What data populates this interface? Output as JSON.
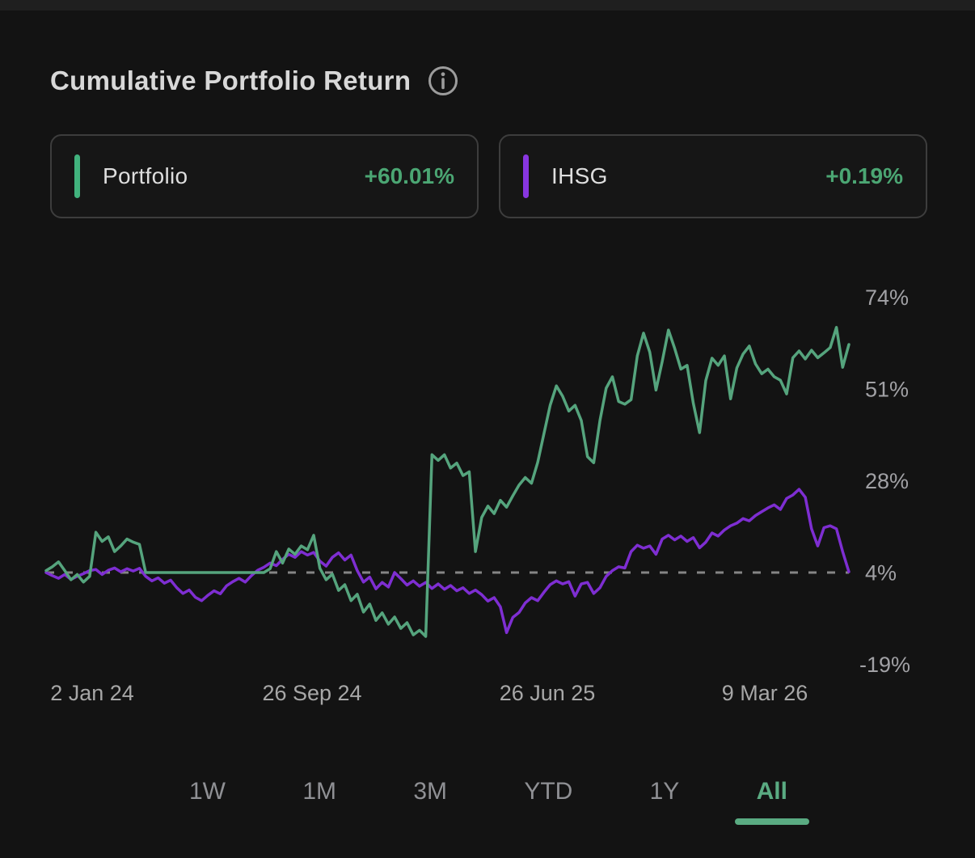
{
  "header": {
    "title": "Cumulative Portfolio Return",
    "info_icon": "info-icon"
  },
  "theme": {
    "background": "#131313",
    "positive_text": "#4ba673",
    "portfolio_green": "#55a47d",
    "ihsg_purple": "#7e2ed2",
    "baseline_gray": "#858585",
    "axis_text": "#a1a1a5"
  },
  "legend": [
    {
      "label": "Portfolio",
      "value": "+60.01%",
      "accent": "#41b27d"
    },
    {
      "label": "IHSG",
      "value": "+0.19%",
      "accent": "#8836e0"
    }
  ],
  "chart_data": {
    "type": "line",
    "title": "Cumulative Portfolio Return",
    "y_unit": "%",
    "baseline_value": 0,
    "grid": false,
    "legend_position": "top",
    "x_tick_labels": [
      "2 Jan 24",
      "26 Sep 24",
      "26 Jun 25",
      "9 Mar 26"
    ],
    "y_tick_labels": [
      "74%",
      "51%",
      "28%",
      "4%",
      "-19%"
    ],
    "y_tick_values": [
      74,
      51,
      28,
      4,
      -19
    ],
    "series": [
      {
        "name": "Portfolio",
        "color": "#55a47d",
        "final_label": "+60.01%",
        "values": [
          0.5,
          1.5,
          2.8,
          0.5,
          -1.9,
          -0.5,
          -2.5,
          -1.0,
          10.6,
          8.2,
          9.4,
          5.5,
          7.0,
          8.8,
          8.0,
          7.4,
          0,
          0,
          0,
          0,
          0,
          0,
          0,
          0,
          0,
          0,
          0,
          0,
          0,
          0,
          0,
          0,
          0,
          0,
          0,
          0,
          1.0,
          5.5,
          2.5,
          6.2,
          4.8,
          7.0,
          6.0,
          9.8,
          1.1,
          -1.9,
          -0.4,
          -4.7,
          -3.2,
          -7.4,
          -5.7,
          -10.4,
          -8.3,
          -12.6,
          -10.6,
          -13.6,
          -11.7,
          -14.7,
          -13.2,
          -16.4,
          -15.2,
          -16.8,
          31.0,
          29.5,
          31.0,
          27.5,
          28.8,
          25.5,
          26.5,
          5.5,
          14.5,
          17.5,
          15.5,
          19.0,
          17.2,
          20.2,
          23.0,
          25.0,
          23.5,
          29.0,
          36.5,
          44.0,
          49.1,
          46.4,
          42.5,
          44.0,
          40.0,
          30.5,
          28.9,
          40.0,
          48.5,
          51.5,
          45.0,
          44.3,
          45.5,
          57.0,
          63.0,
          58.0,
          48.0,
          55.5,
          63.8,
          59.0,
          53.5,
          54.5,
          44.5,
          36.8,
          50.5,
          56.4,
          54.5,
          57.0,
          45.7,
          53.8,
          57.5,
          59.6,
          54.9,
          52.3,
          53.5,
          51.5,
          50.6,
          47.0,
          56.5,
          58.3,
          56.2,
          58.5,
          56.5,
          57.8,
          59.2,
          64.5,
          54.0,
          60.01
        ]
      },
      {
        "name": "IHSG",
        "color": "#7e2ed2",
        "final_label": "+0.19%",
        "values": [
          0.0,
          -0.8,
          -1.5,
          -0.5,
          -1.8,
          -1.0,
          -0.3,
          0.5,
          0.8,
          -0.5,
          0.6,
          1.2,
          0.2,
          1.0,
          0.4,
          1.1,
          -1.0,
          -2.2,
          -1.4,
          -2.8,
          -2.0,
          -4.0,
          -5.5,
          -4.6,
          -6.5,
          -7.4,
          -6.0,
          -4.8,
          -5.6,
          -3.5,
          -2.4,
          -1.5,
          -2.5,
          -0.8,
          0.6,
          1.4,
          2.5,
          1.8,
          3.5,
          4.8,
          4.0,
          5.5,
          4.6,
          5.3,
          3.0,
          1.7,
          4.0,
          5.2,
          3.3,
          4.6,
          0.5,
          -2.5,
          -1.2,
          -4.3,
          -2.6,
          -3.8,
          0.0,
          -1.6,
          -3.3,
          -2.2,
          -3.6,
          -2.6,
          -4.2,
          -3.0,
          -4.4,
          -3.4,
          -4.8,
          -4.0,
          -5.5,
          -4.6,
          -5.8,
          -7.5,
          -6.6,
          -9.0,
          -15.8,
          -11.8,
          -10.5,
          -8.0,
          -6.6,
          -7.4,
          -5.2,
          -3.2,
          -2.2,
          -3.0,
          -2.4,
          -6.2,
          -3.0,
          -2.6,
          -5.5,
          -4.0,
          -1.0,
          0.5,
          1.5,
          1.2,
          5.5,
          7.2,
          6.4,
          7.0,
          4.8,
          8.8,
          9.8,
          8.6,
          9.6,
          8.2,
          9.2,
          6.5,
          8.0,
          10.4,
          9.6,
          11.2,
          12.3,
          13.0,
          14.2,
          13.6,
          15.0,
          16.0,
          17.0,
          17.8,
          16.6,
          19.5,
          20.4,
          21.9,
          19.8,
          11.5,
          7.0,
          11.8,
          12.3,
          11.5,
          5.5,
          0.19
        ]
      }
    ]
  },
  "range_tabs": {
    "options": [
      "1W",
      "1M",
      "3M",
      "YTD",
      "1Y",
      "All"
    ],
    "selected": "All"
  }
}
